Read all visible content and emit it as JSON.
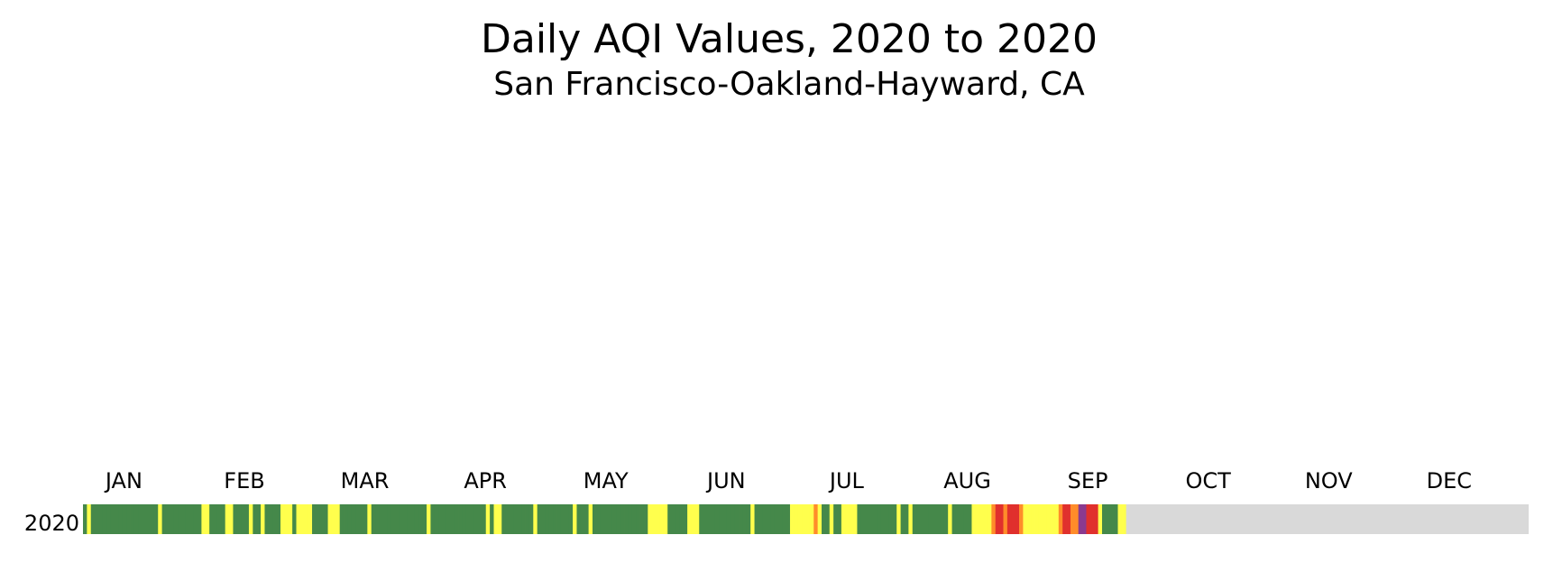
{
  "chart_data": {
    "type": "calendar-strip",
    "title": "Daily AQI Values, 2020 to 2020",
    "subtitle": "San Francisco-Oakland-Hayward, CA",
    "row_label": "2020",
    "categories": [
      "JAN",
      "FEB",
      "MAR",
      "APR",
      "MAY",
      "JUN",
      "JUL",
      "AUG",
      "SEP",
      "OCT",
      "NOV",
      "DEC"
    ],
    "level_colors": [
      "#45884a",
      "#ffff4d",
      "#ff8c2a",
      "#e0302d",
      "#8b3a8f"
    ],
    "missing_color": "#d9d9d9",
    "values": [
      1,
      2,
      1,
      1,
      1,
      1,
      1,
      1,
      1,
      1,
      1,
      1,
      1,
      1,
      1,
      1,
      1,
      1,
      1,
      2,
      1,
      1,
      1,
      1,
      1,
      1,
      1,
      1,
      1,
      1,
      2,
      2,
      1,
      1,
      1,
      1,
      2,
      2,
      1,
      1,
      1,
      1,
      2,
      1,
      1,
      2,
      1,
      1,
      1,
      1,
      2,
      2,
      2,
      1,
      2,
      2,
      2,
      2,
      1,
      1,
      1,
      1,
      2,
      2,
      2,
      1,
      1,
      1,
      1,
      1,
      1,
      1,
      2,
      1,
      1,
      1,
      1,
      1,
      1,
      1,
      1,
      1,
      1,
      1,
      1,
      1,
      1,
      2,
      1,
      1,
      1,
      1,
      1,
      1,
      1,
      1,
      1,
      1,
      1,
      1,
      1,
      1,
      2,
      1,
      2,
      2,
      1,
      1,
      1,
      1,
      1,
      1,
      1,
      1,
      2,
      1,
      1,
      1,
      1,
      1,
      1,
      1,
      1,
      1,
      2,
      1,
      1,
      1,
      2,
      1,
      1,
      1,
      1,
      1,
      1,
      1,
      1,
      1,
      1,
      1,
      1,
      1,
      1,
      2,
      2,
      2,
      2,
      2,
      1,
      1,
      1,
      1,
      1,
      2,
      2,
      2,
      1,
      1,
      1,
      1,
      1,
      1,
      1,
      1,
      1,
      1,
      1,
      1,
      1,
      2,
      1,
      1,
      1,
      1,
      1,
      1,
      1,
      1,
      1,
      2,
      2,
      2,
      2,
      2,
      2,
      3,
      2,
      1,
      1,
      2,
      1,
      1,
      2,
      2,
      2,
      2,
      1,
      1,
      1,
      1,
      1,
      1,
      1,
      1,
      1,
      1,
      2,
      1,
      1,
      2,
      1,
      1,
      1,
      1,
      1,
      1,
      1,
      1,
      1,
      2,
      1,
      1,
      1,
      1,
      1,
      2,
      2,
      2,
      2,
      2,
      3,
      4,
      4,
      3,
      4,
      4,
      4,
      3,
      2,
      2,
      2,
      2,
      2,
      2,
      2,
      2,
      2,
      3,
      4,
      4,
      3,
      3,
      5,
      5,
      4,
      4,
      4,
      2,
      1,
      1,
      1,
      1,
      2,
      2,
      null,
      null,
      null,
      null,
      null,
      null,
      null,
      null,
      null,
      null,
      null,
      null,
      null,
      null,
      null,
      null,
      null,
      null,
      null,
      null,
      null,
      null,
      null,
      null,
      null,
      null,
      null,
      null,
      null,
      null,
      null,
      null,
      null,
      null,
      null,
      null,
      null,
      null,
      null,
      null,
      null,
      null,
      null,
      null,
      null,
      null,
      null,
      null,
      null,
      null,
      null,
      null,
      null,
      null,
      null,
      null,
      null,
      null,
      null,
      null,
      null,
      null,
      null,
      null,
      null,
      null,
      null,
      null,
      null,
      null,
      null,
      null,
      null,
      null,
      null,
      null,
      null,
      null,
      null,
      null,
      null,
      null,
      null,
      null,
      null,
      null,
      null,
      null,
      null,
      null,
      null,
      null,
      null,
      null,
      null,
      null,
      null,
      null,
      null,
      null,
      null,
      null
    ]
  }
}
